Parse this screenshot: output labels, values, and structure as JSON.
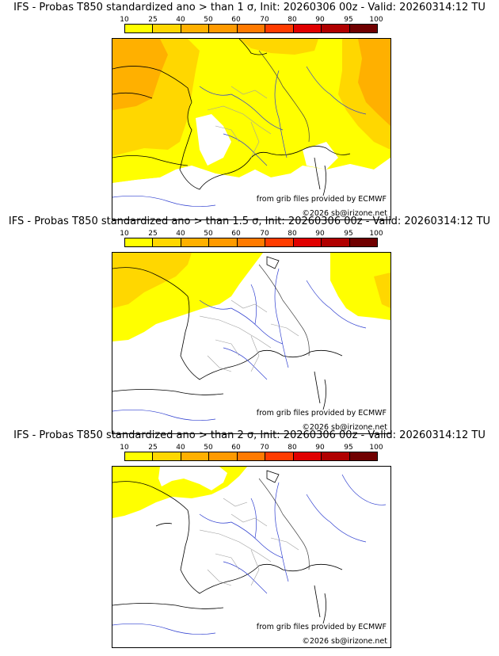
{
  "colors": {
    "bin_10": "#ffff00",
    "bin_25": "#ffd700",
    "bin_40": "#ffb000",
    "bin_50": "#ff9a00",
    "bin_60": "#ff7a00",
    "bin_70": "#ff3c00",
    "bin_80": "#e00000",
    "bin_90": "#b00000",
    "bin_95": "#700000",
    "coast": "#000000",
    "rivers": "#3040d0",
    "borders": "#a0a0a0"
  },
  "legend": {
    "labels": [
      "10",
      "25",
      "40",
      "50",
      "60",
      "70",
      "80",
      "90",
      "95",
      "100"
    ]
  },
  "panels": [
    {
      "title": "IFS - Probas T850  standardized ano > than 1 σ, Init: 20260306 00z - Valid: 20260314:12 TU",
      "credit": "from grib files provided by ECMWF",
      "copyright": "©2026 sb@irizone.net"
    },
    {
      "title": "IFS - Probas T850  standardized ano > than 1.5 σ, Init: 20260306 00z - Valid: 20260314:12 TU",
      "credit": "from grib files provided by ECMWF",
      "copyright": "©2026 sb@irizone.net"
    },
    {
      "title": "IFS - Probas T850  standardized ano > than 2 σ, Init: 20260306 00z - Valid: 20260314:12 TU",
      "credit": "from grib files provided by ECMWF",
      "copyright": "©2026 sb@irizone.net"
    }
  ]
}
